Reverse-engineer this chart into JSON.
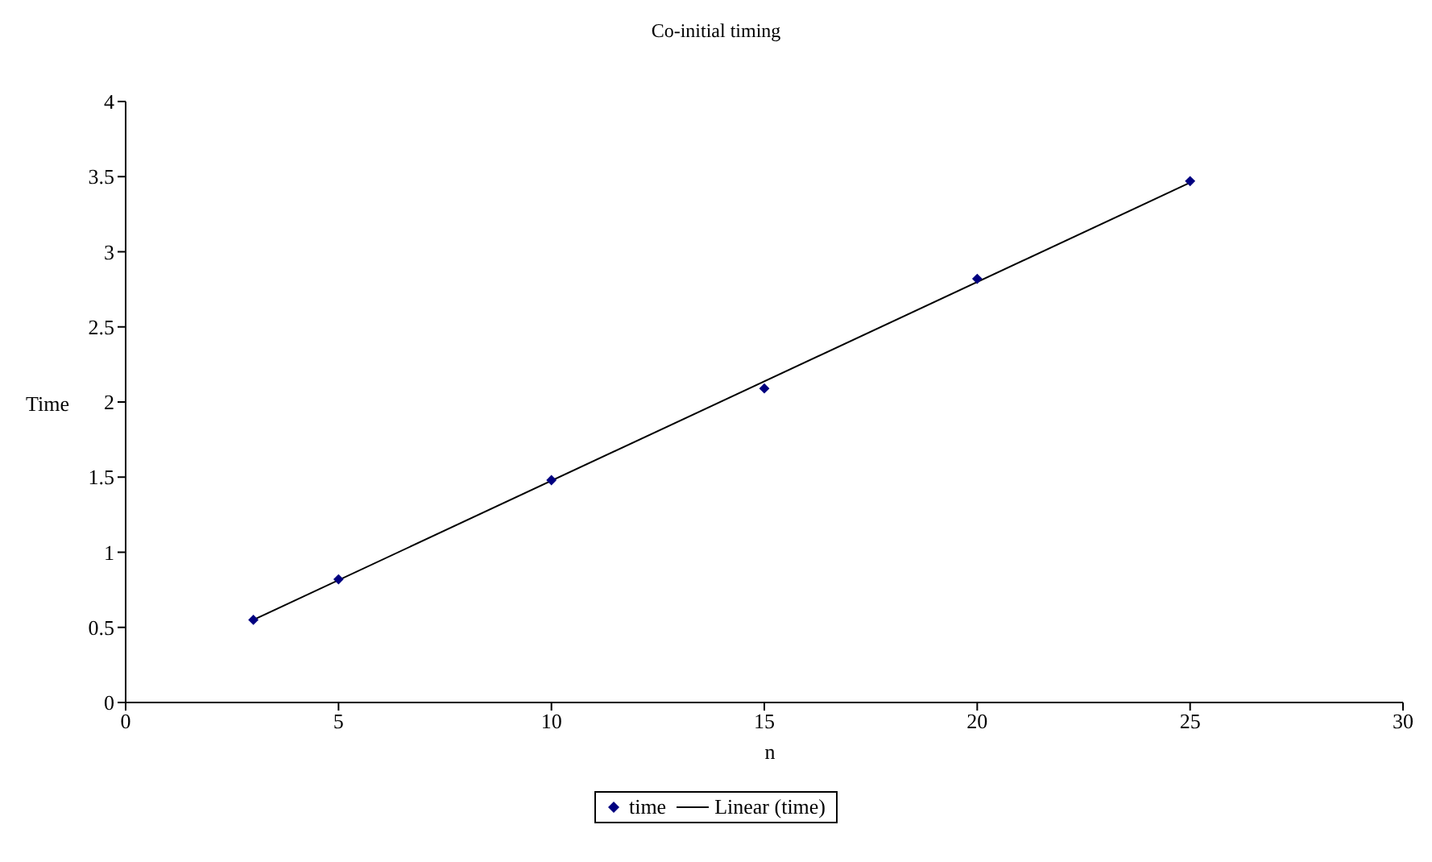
{
  "chart_data": {
    "type": "scatter",
    "title": "Co-initial timing",
    "xlabel": "n",
    "ylabel": "Time",
    "series": [
      {
        "name": "time",
        "color": "#000080",
        "x": [
          3,
          5,
          10,
          15,
          20,
          25
        ],
        "values": [
          0.55,
          0.82,
          1.48,
          2.09,
          2.82,
          3.47
        ],
        "marker": "diamond"
      },
      {
        "name": "Linear (time)",
        "type": "line",
        "color": "#000000",
        "x": [
          3,
          25
        ],
        "values": [
          0.55,
          3.46
        ],
        "marker": "none",
        "line_style": "solid"
      }
    ],
    "xlim": [
      0,
      30
    ],
    "xticks": [
      0,
      5,
      10,
      15,
      20,
      25,
      30
    ],
    "ylim": [
      0,
      4
    ],
    "yticks": [
      0,
      0.5,
      1,
      1.5,
      2,
      2.5,
      3,
      3.5,
      4
    ],
    "legend": "bottom"
  }
}
